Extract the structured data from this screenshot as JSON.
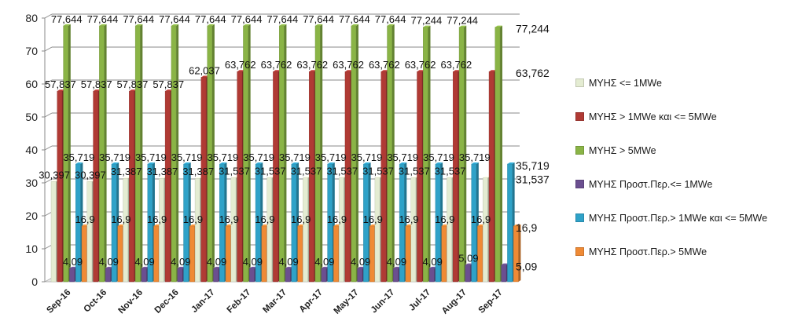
{
  "chart_data": {
    "type": "bar",
    "title": "",
    "xlabel": "",
    "ylabel": "",
    "ylim": [
      0,
      80
    ],
    "yticks": [
      "0",
      "10",
      "20",
      "30",
      "40",
      "50",
      "60",
      "70",
      "80"
    ],
    "grid": true,
    "legend_position": "right",
    "categories": [
      "Sep-16",
      "Oct-16",
      "Nov-16",
      "Dec-16",
      "Jan-17",
      "Feb-17",
      "Mar-17",
      "Apr-17",
      "May-17",
      "Jun-17",
      "Jul-17",
      "Aug-17",
      "Sep-17"
    ],
    "series": [
      {
        "name": "ΜΥΗΣ <= 1MWe",
        "color": "#e4ecd2",
        "values": [
          30.397,
          30.397,
          31.387,
          31.387,
          31.387,
          31.537,
          31.537,
          31.537,
          31.537,
          31.537,
          31.537,
          31.537,
          31.537
        ],
        "labels": [
          "30,397",
          "30,397",
          "31,387",
          "31,387",
          "31,387",
          "31,537",
          "31,537",
          "31,537",
          "31,537",
          "31,537",
          "31,537",
          "31,537",
          "31,537"
        ]
      },
      {
        "name": "ΜΥΗΣ > 1MWe και <= 5MWe",
        "color": "#b03a34",
        "values": [
          57.837,
          57.837,
          57.837,
          57.837,
          62.037,
          63.762,
          63.762,
          63.762,
          63.762,
          63.762,
          63.762,
          63.762,
          63.762
        ],
        "labels": [
          "57,837",
          "57,837",
          "57,837",
          "57,837",
          "62,037",
          "63,762",
          "63,762",
          "63,762",
          "63,762",
          "63,762",
          "63,762",
          "63,762",
          "63,762"
        ]
      },
      {
        "name": "ΜΥΗΣ > 5MWe",
        "color": "#8ab446",
        "values": [
          77.644,
          77.644,
          77.644,
          77.644,
          77.644,
          77.644,
          77.644,
          77.644,
          77.644,
          77.644,
          77.244,
          77.244,
          77.244
        ],
        "labels": [
          "77,644",
          "77,644",
          "77,644",
          "77,644",
          "77,644",
          "77,644",
          "77,644",
          "77,644",
          "77,644",
          "77,644",
          "77,244",
          "77,244",
          "77,244"
        ]
      },
      {
        "name": "ΜΥΗΣ Προστ.Περ.<= 1MWe",
        "color": "#6b4f90",
        "values": [
          4.09,
          4.09,
          4.09,
          4.09,
          4.09,
          4.09,
          4.09,
          4.09,
          4.09,
          4.09,
          4.09,
          5.09,
          5.09
        ],
        "labels": [
          "4,09",
          "4,09",
          "4,09",
          "4,09",
          "4,09",
          "4,09",
          "4,09",
          "4,09",
          "4,09",
          "4,09",
          "4,09",
          "5,09",
          "5,09"
        ]
      },
      {
        "name": "ΜΥΗΣ Προστ.Περ.> 1MWe και <= 5MWe",
        "color": "#2fa2c8",
        "values": [
          35.719,
          35.719,
          35.719,
          35.719,
          35.719,
          35.719,
          35.719,
          35.719,
          35.719,
          35.719,
          35.719,
          35.719,
          35.719
        ],
        "labels": [
          "35,719",
          "35,719",
          "35,719",
          "35,719",
          "35,719",
          "35,719",
          "35,719",
          "35,719",
          "35,719",
          "35,719",
          "35,719",
          "35,719",
          "35,719"
        ]
      },
      {
        "name": "ΜΥΗΣ Προστ.Περ.> 5MWe",
        "color": "#ef8a35",
        "values": [
          16.9,
          16.9,
          16.9,
          16.9,
          16.9,
          16.9,
          16.9,
          16.9,
          16.9,
          16.9,
          16.9,
          16.9,
          16.9
        ],
        "labels": [
          "16,9",
          "16,9",
          "16,9",
          "16,9",
          "16,9",
          "16,9",
          "16,9",
          "16,9",
          "16,9",
          "16,9",
          "16,9",
          "16,9",
          "16,9"
        ]
      }
    ]
  }
}
